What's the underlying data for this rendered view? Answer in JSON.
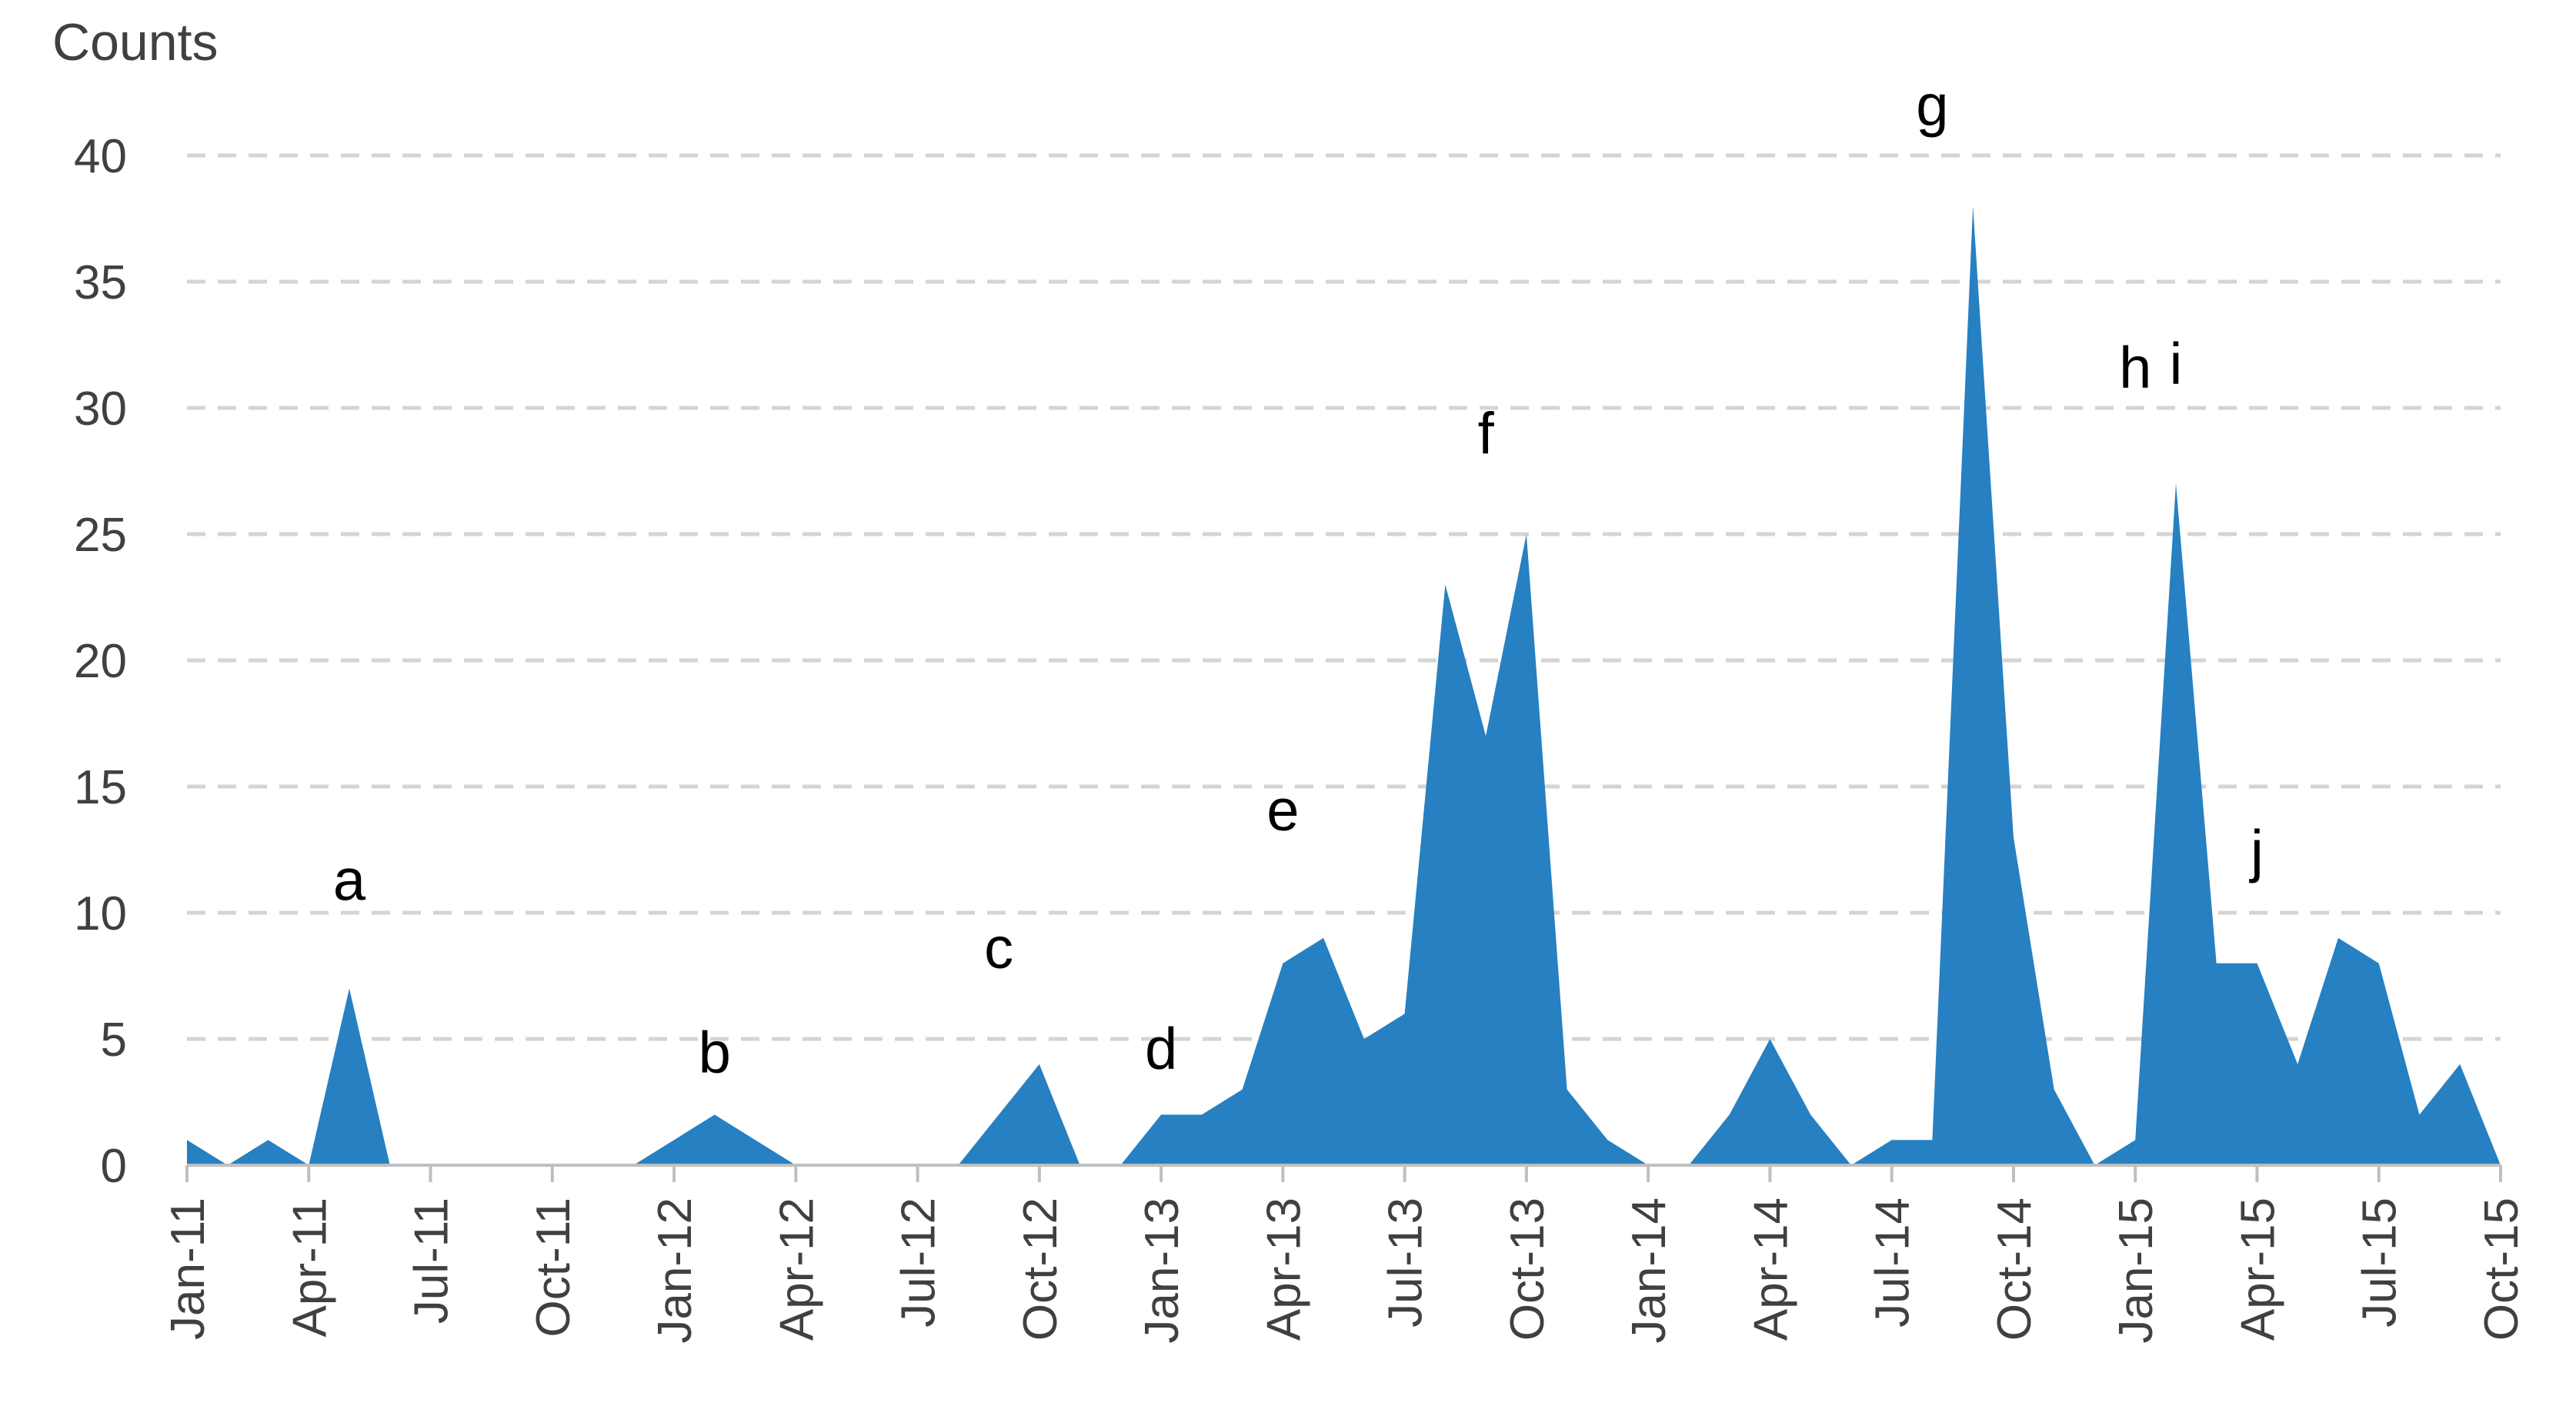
{
  "chart_data": {
    "type": "area",
    "ylabel": "Counts",
    "xlabel": "",
    "title": "",
    "ylim": [
      0,
      40
    ],
    "yticks": [
      0,
      5,
      10,
      15,
      20,
      25,
      30,
      35,
      40
    ],
    "grid": true,
    "legend": "none",
    "color": "#2680c2",
    "xtick_labels": [
      "Jan-11",
      "Apr-11",
      "Jul-11",
      "Oct-11",
      "Jan-12",
      "Apr-12",
      "Jul-12",
      "Oct-12",
      "Jan-13",
      "Apr-13",
      "Jul-13",
      "Oct-13",
      "Jan-14",
      "Apr-14",
      "Jul-14",
      "Oct-14",
      "Jan-15",
      "Apr-15",
      "Jul-15",
      "Oct-15"
    ],
    "x": [
      "Jan-11",
      "Feb-11",
      "Mar-11",
      "Apr-11",
      "May-11",
      "Jun-11",
      "Jul-11",
      "Aug-11",
      "Sep-11",
      "Oct-11",
      "Nov-11",
      "Dec-11",
      "Jan-12",
      "Feb-12",
      "Mar-12",
      "Apr-12",
      "May-12",
      "Jun-12",
      "Jul-12",
      "Aug-12",
      "Sep-12",
      "Oct-12",
      "Nov-12",
      "Dec-12",
      "Jan-13",
      "Feb-13",
      "Mar-13",
      "Apr-13",
      "May-13",
      "Jun-13",
      "Jul-13",
      "Aug-13",
      "Sep-13",
      "Oct-13",
      "Nov-13",
      "Dec-13",
      "Jan-14",
      "Feb-14",
      "Mar-14",
      "Apr-14",
      "May-14",
      "Jun-14",
      "Jul-14",
      "Aug-14",
      "Sep-14",
      "Oct-14",
      "Nov-14",
      "Dec-14",
      "Jan-15",
      "Feb-15",
      "Mar-15",
      "Apr-15",
      "May-15",
      "Jun-15",
      "Jul-15",
      "Aug-15",
      "Sep-15",
      "Oct-15"
    ],
    "values": [
      1,
      0,
      1,
      0,
      7,
      0,
      0,
      0,
      0,
      0,
      0,
      0,
      1,
      2,
      1,
      0,
      0,
      0,
      0,
      0,
      2,
      4,
      0,
      0,
      2,
      2,
      3,
      8,
      9,
      5,
      6,
      23,
      17,
      25,
      3,
      1,
      0,
      0,
      2,
      5,
      2,
      0,
      1,
      1,
      38,
      13,
      3,
      0,
      1,
      27,
      8,
      8,
      4,
      9,
      8,
      2,
      4,
      0
    ],
    "annotations": [
      {
        "label": "a",
        "x": "May-11"
      },
      {
        "label": "b",
        "x": "Feb-12"
      },
      {
        "label": "c",
        "x": "Sep-12"
      },
      {
        "label": "d",
        "x": "Jan-13"
      },
      {
        "label": "e",
        "x": "Apr-13"
      },
      {
        "label": "f",
        "x": "Sep-13"
      },
      {
        "label": "g",
        "x": "Aug-14"
      },
      {
        "label": "h",
        "x": "Jan-15"
      },
      {
        "label": "i",
        "x": "Feb-15"
      },
      {
        "label": "j",
        "x": "Apr-15"
      }
    ]
  }
}
